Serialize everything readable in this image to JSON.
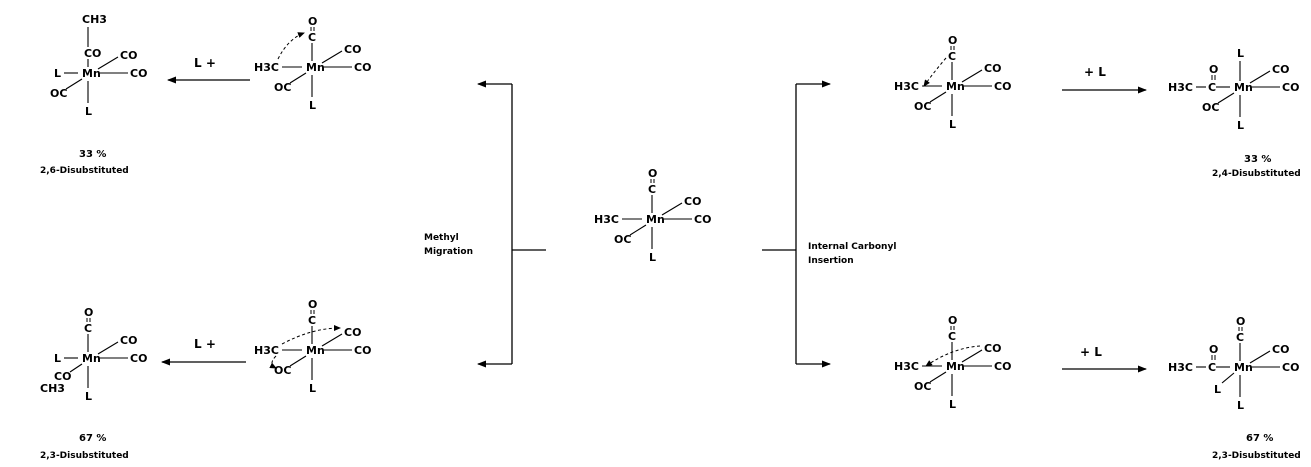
{
  "atoms": {
    "mn": "Mn",
    "c": "C",
    "o": "O",
    "h3c": "H3C",
    "ch3": "CH3",
    "co": "CO",
    "oc": "OC",
    "l": "L"
  },
  "reagents": {
    "l_plus": "L +",
    "plus_l": "+ L"
  },
  "pathways": {
    "left_label_line1": "Methyl",
    "left_label_line2": "Migration",
    "right_label_line1": "Internal Carbonyl",
    "right_label_line2": "Insertion"
  },
  "products": {
    "top_left_percent": "33 %",
    "top_left_label": "2,6-Disubstituted",
    "bottom_left_percent": "67 %",
    "bottom_left_label": "2,3-Disubstituted",
    "top_right_percent": "33 %",
    "top_right_label": "2,4-Disubstituted",
    "bottom_right_percent": "67 %",
    "bottom_right_label": "2,3-Disubstituted"
  }
}
